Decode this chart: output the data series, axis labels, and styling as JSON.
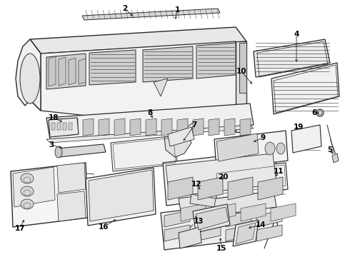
{
  "background_color": "#ffffff",
  "line_color": "#2a2a2a",
  "label_color": "#000000",
  "fig_width": 4.9,
  "fig_height": 3.6,
  "dpi": 100,
  "label_fontsize": 7.5,
  "arrow_lw": 0.6,
  "part_lw": 0.8
}
